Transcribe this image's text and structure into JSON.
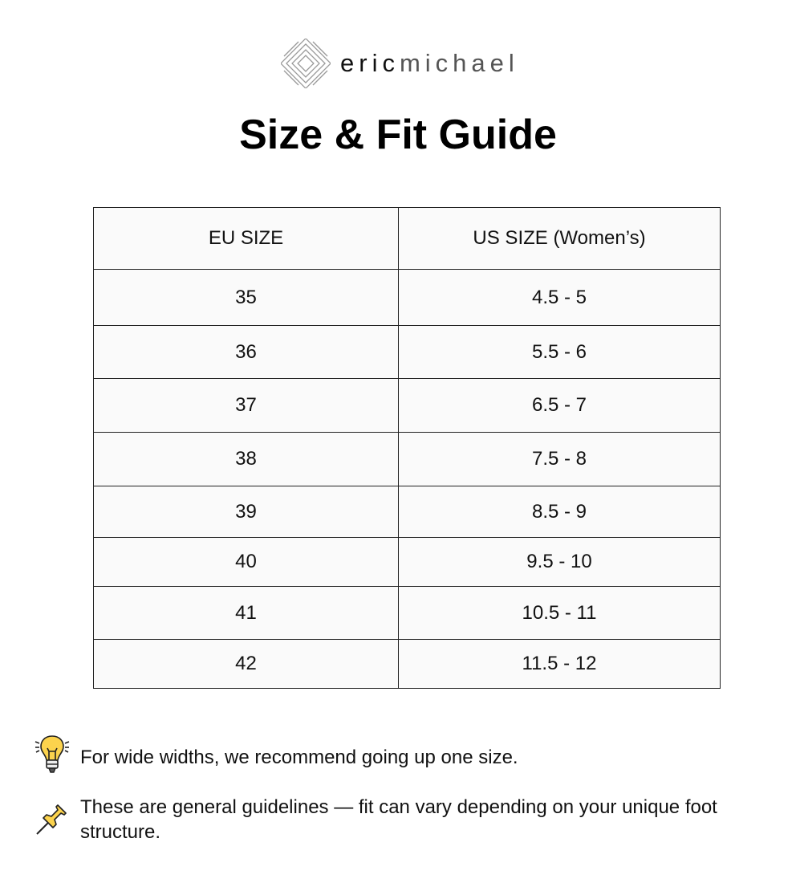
{
  "brand": {
    "name_part1": "eric",
    "name_part2": "michael"
  },
  "title": "Size & Fit Guide",
  "table": {
    "headers": [
      "EU SIZE",
      "US SIZE (Women’s)"
    ],
    "rows": [
      [
        "35",
        "4.5 - 5"
      ],
      [
        "36",
        "5.5 - 6"
      ],
      [
        "37",
        "6.5 - 7"
      ],
      [
        "38",
        "7.5 - 8"
      ],
      [
        "39",
        "8.5 - 9"
      ],
      [
        "40",
        "9.5 - 10"
      ],
      [
        "41",
        "10.5 - 11"
      ],
      [
        "42",
        "11.5 - 12"
      ]
    ]
  },
  "notes": [
    {
      "icon": "lightbulb-icon",
      "text": "For wide widths, we recommend going up one size."
    },
    {
      "icon": "pushpin-icon",
      "text": "These are general guidelines — fit can vary depending on your unique foot structure."
    }
  ],
  "colors": {
    "icon_yellow": "#fcd34d",
    "border": "#222222",
    "cell_bg": "#fafafa"
  }
}
